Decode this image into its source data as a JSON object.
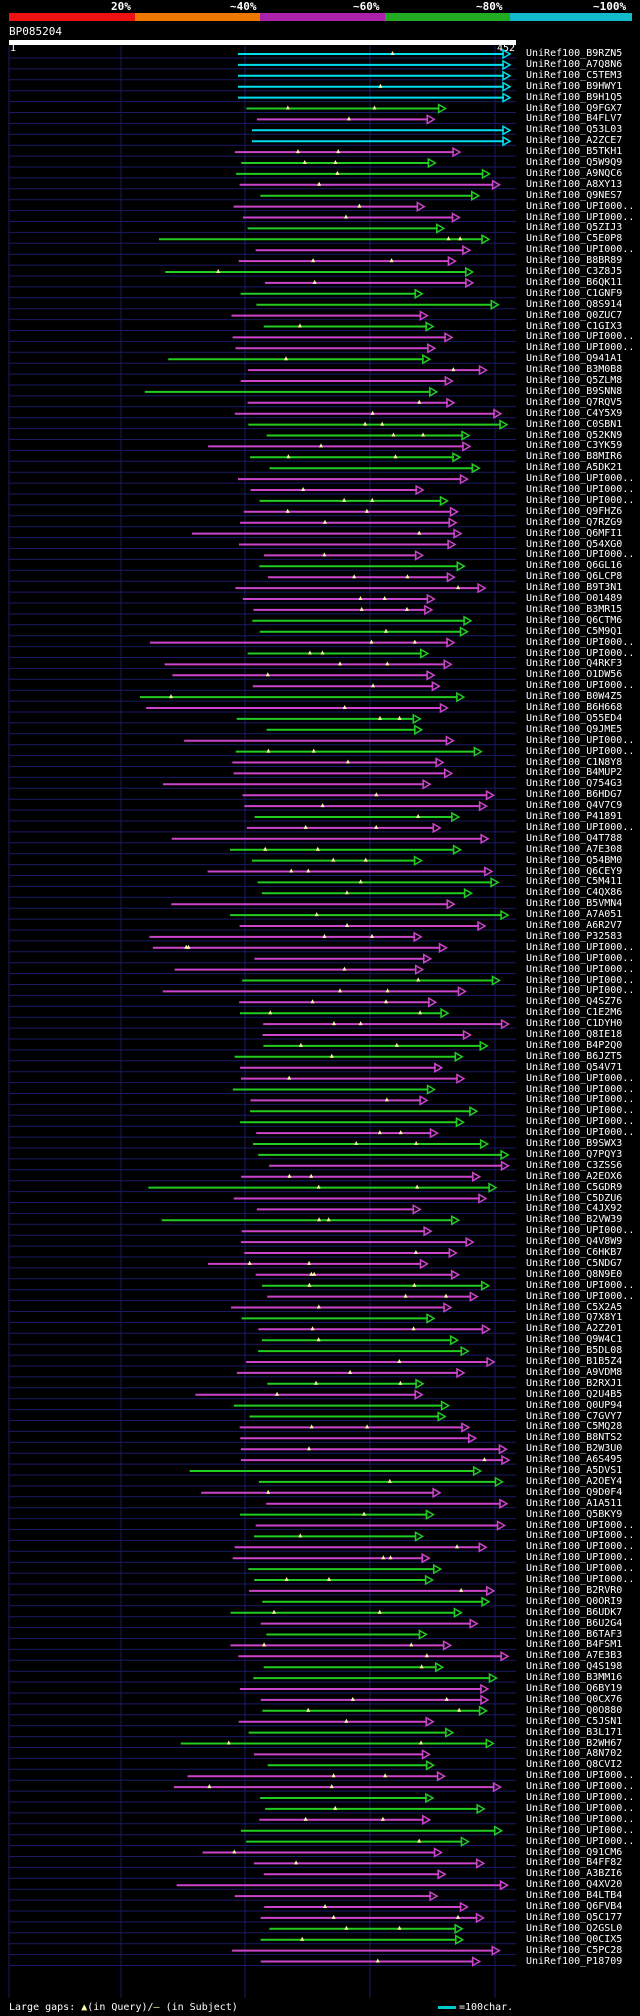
{
  "header": {
    "percent_labels": [
      "20%",
      "~40%",
      "~60%",
      "~80%",
      "~100%"
    ],
    "scale_colors": [
      "#ee1111",
      "#ee7700",
      "#aa22aa",
      "#22aa22",
      "#11bbcc"
    ],
    "query_id": "BP085204",
    "query_start": "1",
    "query_end": "452"
  },
  "colors": {
    "cyan": "#00ddee",
    "green": "#22cc22",
    "magenta": "#cc44cc",
    "grid_line": "#1a1a66",
    "gap_mark": "#ffffaa"
  },
  "hits": [
    "UniRef100_B9RZN5",
    "UniRef100_A7Q8N6",
    "UniRef100_C5TEM3",
    "UniRef100_B9HWY1",
    "UniRef100_B9H1Q5",
    "UniRef100_Q9FGX7",
    "UniRef100_B4FLV7",
    "UniRef100_Q53L03",
    "UniRef100_A2ZCE7",
    "UniRef100_B5TKH1",
    "UniRef100_Q5W9Q9",
    "UniRef100_A9NQC6",
    "UniRef100_A8XY13",
    "UniRef100_Q9NES7",
    "UniRef100_UPI000..",
    "UniRef100_UPI000..",
    "UniRef100_Q5ZIJ3",
    "UniRef100_C5E0P8",
    "UniRef100_UPI000..",
    "UniRef100_B8BR89",
    "UniRef100_C3Z8J5",
    "UniRef100_B6QK11",
    "UniRef100_C1GNF9",
    "UniRef100_Q8S914",
    "UniRef100_Q0ZUC7",
    "UniRef100_C1GIX3",
    "UniRef100_UPI000..",
    "UniRef100_UPI000..",
    "UniRef100_Q941A1",
    "UniRef100_B3M0B8",
    "UniRef100_Q5ZLM8",
    "UniRef100_B9SNN8",
    "UniRef100_Q7RQV5",
    "UniRef100_C4Y5X9",
    "UniRef100_C0SBN1",
    "UniRef100_Q52KN9",
    "UniRef100_C3YK59",
    "UniRef100_B8MIR6",
    "UniRef100_A5DK21",
    "UniRef100_UPI000..",
    "UniRef100_UPI000..",
    "UniRef100_UPI000..",
    "UniRef100_Q9FHZ6",
    "UniRef100_Q7RZG9",
    "UniRef100_Q6MFI1",
    "UniRef100_Q54XG0",
    "UniRef100_UPI000..",
    "UniRef100_Q6GL16",
    "UniRef100_Q6LCP8",
    "UniRef100_B9T3N1",
    "UniRef100_O01489",
    "UniRef100_B3MR15",
    "UniRef100_Q6CTM6",
    "UniRef100_C5M9Q1",
    "UniRef100_UPI000..",
    "UniRef100_UPI000..",
    "UniRef100_Q4RKF3",
    "UniRef100_O1DW56",
    "UniRef100_UPI000..",
    "UniRef100_B0W4Z5",
    "UniRef100_B6H668",
    "UniRef100_Q55ED4",
    "UniRef100_Q9JME5",
    "UniRef100_UPI000..",
    "UniRef100_UPI000..",
    "UniRef100_C1N8Y8",
    "UniRef100_B4MUP2",
    "UniRef100_Q754G3",
    "UniRef100_B6HDG7",
    "UniRef100_Q4V7C9",
    "UniRef100_P41891",
    "UniRef100_UPI000..",
    "UniRef100_Q4T788",
    "UniRef100_A7E308",
    "UniRef100_Q54BM0",
    "UniRef100_Q6CEY9",
    "UniRef100_C5M411",
    "UniRef100_C4QX86",
    "UniRef100_B5VMN4",
    "UniRef100_A7A051",
    "UniRef100_A6R2V7",
    "UniRef100_P32583",
    "UniRef100_UPI000..",
    "UniRef100_UPI000..",
    "UniRef100_UPI000..",
    "UniRef100_UPI000..",
    "UniRef100_UPI000..",
    "UniRef100_Q4SZ76",
    "UniRef100_C1E2M6",
    "UniRef100_C1DYH0",
    "UniRef100_Q8IE18",
    "UniRef100_B4P2Q0",
    "UniRef100_B6JZT5",
    "UniRef100_Q54V71",
    "UniRef100_UPI000..",
    "UniRef100_UPI000..",
    "UniRef100_UPI000..",
    "UniRef100_UPI000..",
    "UniRef100_UPI000..",
    "UniRef100_UPI000..",
    "UniRef100_B9SWX3",
    "UniRef100_Q7PQY3",
    "UniRef100_C3ZSS6",
    "UniRef100_A2EOX6",
    "UniRef100_C5GDR9",
    "UniRef100_C5DZU6",
    "UniRef100_C4JX92",
    "UniRef100_B2VW39",
    "UniRef100_UPI000..",
    "UniRef100_Q4V8W9",
    "UniRef100_C6HKB7",
    "UniRef100_C5NDG7",
    "UniRef100_Q8N9E0",
    "UniRef100_UPI000..",
    "UniRef100_UPI000..",
    "UniRef100_C5X2A5",
    "UniRef100_Q7X8Y1",
    "UniRef100_A2Z201",
    "UniRef100_Q9W4C1",
    "UniRef100_B5DL08",
    "UniRef100_B1B5Z4",
    "UniRef100_A9VDM8",
    "UniRef100_B2RXJ1",
    "UniRef100_Q2U4B5",
    "UniRef100_Q0UP94",
    "UniRef100_C7GVY7",
    "UniRef100_C5MQ28",
    "UniRef100_B8NTS2",
    "UniRef100_B2W3U0",
    "UniRef100_A6S495",
    "UniRef100_A5DVS1",
    "UniRef100_A2OEY4",
    "UniRef100_Q9D0F4",
    "UniRef100_A1A511",
    "UniRef100_Q5BKY9",
    "UniRef100_UPI000..",
    "UniRef100_UPI000..",
    "UniRef100_UPI000..",
    "UniRef100_UPI000..",
    "UniRef100_UPI000..",
    "UniRef100_UPI000..",
    "UniRef100_B2RVR0",
    "UniRef100_Q0ORI9",
    "UniRef100_B6UDK7",
    "UniRef100_B6U2G4",
    "UniRef100_B6TAF3",
    "UniRef100_B4FSM1",
    "UniRef100_A7E3B3",
    "UniRef100_Q4S198",
    "UniRef100_B3MM16",
    "UniRef100_Q6BY19",
    "UniRef100_Q0CX76",
    "UniRef100_Q0O880",
    "UniRef100_C5JSN1",
    "UniRef100_B3L171",
    "UniRef100_B2WH67",
    "UniRef100_A8N702",
    "UniRef100_Q8CVI2",
    "UniRef100_UPI000..",
    "UniRef100_UPI000..",
    "UniRef100_UPI000..",
    "UniRef100_UPI000..",
    "UniRef100_UPI000..",
    "UniRef100_UPI000..",
    "UniRef100_UPI000..",
    "UniRef100_Q91CM6",
    "UniRef100_B4FF82",
    "UniRef100_A3BZI6",
    "UniRef100_Q4XV20",
    "UniRef100_B4LTB4",
    "UniRef100_Q6FVB4",
    "UniRef100_Q5C177",
    "UniRef100_Q2GSL0",
    "UniRef100_Q0CIX5",
    "UniRef100_C5PC28",
    "UniRef100_P18709"
  ],
  "footer": {
    "prefix": "Large gaps: ",
    "in_query": "(in Query)/",
    "in_subject": " (in Subject)",
    "legend_text": "=100char."
  }
}
